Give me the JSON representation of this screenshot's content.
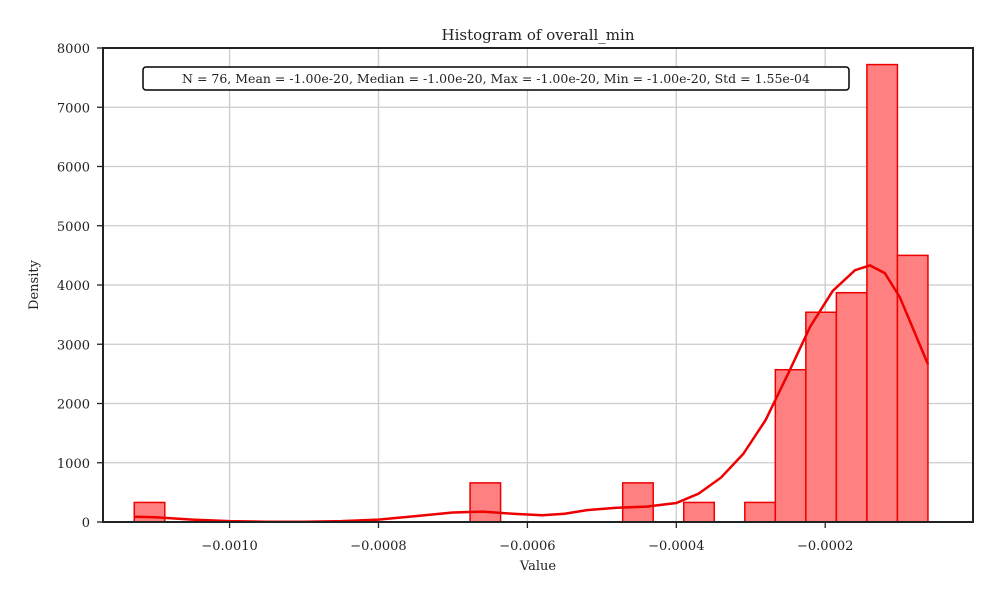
{
  "chart_data": {
    "type": "bar",
    "title": "Histogram of overall_min",
    "xlabel": "Value",
    "ylabel": "Density",
    "stats_text": "N = 76, Mean = -1.00e-20, Median = -1.00e-20, Max = -1.00e-20, Min = -1.00e-20, Std = 1.55e-04",
    "xlim": [
      -0.00117,
      -1.5e-06
    ],
    "ylim": [
      0,
      8000
    ],
    "grid": true,
    "x_ticks": [
      -0.001,
      -0.0008,
      -0.0006,
      -0.0004,
      -0.0002
    ],
    "x_tick_labels": [
      "−0.0010",
      "−0.0008",
      "−0.0006",
      "−0.0004",
      "−0.0002"
    ],
    "y_ticks": [
      0,
      1000,
      2000,
      3000,
      4000,
      5000,
      6000,
      7000,
      8000
    ],
    "y_tick_labels": [
      "0",
      "1000",
      "2000",
      "3000",
      "4000",
      "5000",
      "6000",
      "7000",
      "8000"
    ],
    "bin_width": 4.1e-05,
    "bins": [
      {
        "left": -0.001128,
        "value": 330
      },
      {
        "left": -0.000677,
        "value": 660
      },
      {
        "left": -0.000472,
        "value": 660
      },
      {
        "left": -0.00039,
        "value": 330
      },
      {
        "left": -0.000308,
        "value": 330
      },
      {
        "left": -0.000267,
        "value": 2570
      },
      {
        "left": -0.000226,
        "value": 3540
      },
      {
        "left": -0.000185,
        "value": 3870
      },
      {
        "left": -0.000144,
        "value": 7720
      },
      {
        "left": -0.000103,
        "value": 4500
      }
    ],
    "kde": {
      "x": [
        -0.001128,
        -0.0011,
        -0.00105,
        -0.001,
        -0.00095,
        -0.0009,
        -0.00085,
        -0.0008,
        -0.00075,
        -0.0007,
        -0.00066,
        -0.00062,
        -0.00058,
        -0.00055,
        -0.00052,
        -0.00048,
        -0.00044,
        -0.0004,
        -0.00037,
        -0.00034,
        -0.00031,
        -0.00028,
        -0.00025,
        -0.00022,
        -0.00019,
        -0.00016,
        -0.00014,
        -0.00012,
        -0.0001,
        -8e-05,
        -6.2e-05
      ],
      "y": [
        90,
        80,
        40,
        15,
        5,
        5,
        15,
        40,
        100,
        160,
        175,
        140,
        115,
        140,
        200,
        240,
        260,
        320,
        480,
        750,
        1150,
        1720,
        2500,
        3300,
        3900,
        4250,
        4330,
        4200,
        3800,
        3200,
        2660
      ]
    },
    "colors": {
      "bar_fill": "#ff8080",
      "bar_edge": "#ee0000",
      "kde_line": "#ee0000",
      "grid": "#cccccc"
    }
  }
}
